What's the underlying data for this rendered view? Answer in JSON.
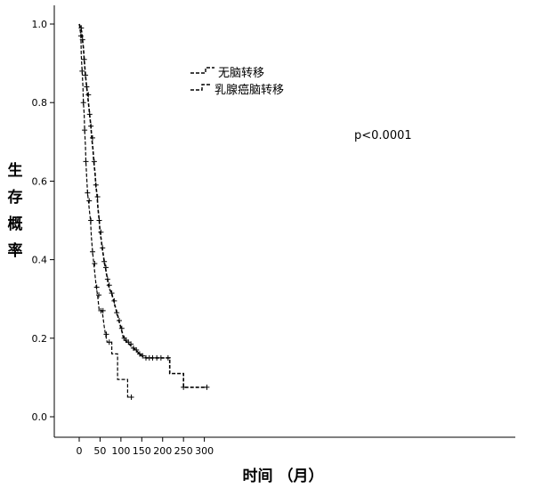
{
  "chart_data": {
    "type": "line",
    "subtype": "kaplan-meier survival curve",
    "xlabel": "时间 （月）",
    "ylabel": "生存概率",
    "xlim": [
      0,
      310
    ],
    "ylim": [
      0.0,
      1.0
    ],
    "x_ticks": [
      "0",
      "50",
      "100",
      "150",
      "200",
      "250",
      "300"
    ],
    "y_ticks": [
      "0.0",
      "0.2",
      "0.4",
      "0.6",
      "0.8",
      "1.0"
    ],
    "grid": false,
    "legend_position": "top-center",
    "annotation": "p<0.0001",
    "series": [
      {
        "name": "无脑转移",
        "line_style": "dashed",
        "censor_marker": "+",
        "points": [
          [
            0,
            1.0
          ],
          [
            2,
            0.995
          ],
          [
            4,
            0.99
          ],
          [
            6,
            0.98
          ],
          [
            8,
            0.96
          ],
          [
            10,
            0.94
          ],
          [
            12,
            0.91
          ],
          [
            15,
            0.87
          ],
          [
            18,
            0.84
          ],
          [
            20,
            0.82
          ],
          [
            23,
            0.79
          ],
          [
            25,
            0.77
          ],
          [
            28,
            0.74
          ],
          [
            30,
            0.71
          ],
          [
            33,
            0.68
          ],
          [
            35,
            0.65
          ],
          [
            38,
            0.62
          ],
          [
            40,
            0.59
          ],
          [
            43,
            0.56
          ],
          [
            45,
            0.53
          ],
          [
            48,
            0.5
          ],
          [
            50,
            0.47
          ],
          [
            53,
            0.45
          ],
          [
            55,
            0.43
          ],
          [
            58,
            0.41
          ],
          [
            60,
            0.395
          ],
          [
            63,
            0.38
          ],
          [
            65,
            0.365
          ],
          [
            68,
            0.35
          ],
          [
            70,
            0.335
          ],
          [
            73,
            0.325
          ],
          [
            75,
            0.32
          ],
          [
            78,
            0.315
          ],
          [
            80,
            0.305
          ],
          [
            83,
            0.295
          ],
          [
            85,
            0.285
          ],
          [
            88,
            0.275
          ],
          [
            90,
            0.265
          ],
          [
            93,
            0.255
          ],
          [
            95,
            0.245
          ],
          [
            98,
            0.235
          ],
          [
            100,
            0.225
          ],
          [
            103,
            0.215
          ],
          [
            105,
            0.205
          ],
          [
            108,
            0.2
          ],
          [
            110,
            0.195
          ],
          [
            115,
            0.19
          ],
          [
            120,
            0.185
          ],
          [
            125,
            0.18
          ],
          [
            130,
            0.175
          ],
          [
            135,
            0.17
          ],
          [
            140,
            0.165
          ],
          [
            145,
            0.16
          ],
          [
            150,
            0.155
          ],
          [
            160,
            0.15
          ],
          [
            170,
            0.15
          ],
          [
            180,
            0.15
          ],
          [
            190,
            0.15
          ],
          [
            200,
            0.15
          ],
          [
            217,
            0.15
          ],
          [
            217,
            0.11
          ],
          [
            250,
            0.11
          ],
          [
            250,
            0.075
          ],
          [
            306,
            0.075
          ]
        ],
        "censored_x": [
          5,
          8,
          12,
          15,
          18,
          22,
          25,
          28,
          32,
          36,
          40,
          44,
          48,
          52,
          56,
          60,
          64,
          68,
          72,
          78,
          84,
          90,
          96,
          102,
          108,
          112,
          118,
          124,
          130,
          137,
          145,
          152,
          160,
          168,
          176,
          186,
          196,
          213,
          250,
          306
        ]
      },
      {
        "name": "乳腺癌脑转移",
        "line_style": "dashed",
        "censor_marker": "+",
        "points": [
          [
            0,
            1.0
          ],
          [
            4,
            0.97
          ],
          [
            5,
            0.92
          ],
          [
            7,
            0.88
          ],
          [
            9,
            0.84
          ],
          [
            10,
            0.8
          ],
          [
            12,
            0.77
          ],
          [
            13,
            0.73
          ],
          [
            15,
            0.69
          ],
          [
            16,
            0.65
          ],
          [
            18,
            0.61
          ],
          [
            20,
            0.57
          ],
          [
            22,
            0.55
          ],
          [
            25,
            0.52
          ],
          [
            27,
            0.5
          ],
          [
            29,
            0.46
          ],
          [
            32,
            0.42
          ],
          [
            35,
            0.39
          ],
          [
            38,
            0.36
          ],
          [
            41,
            0.33
          ],
          [
            44,
            0.31
          ],
          [
            48,
            0.27
          ],
          [
            55,
            0.27
          ],
          [
            60,
            0.23
          ],
          [
            63,
            0.21
          ],
          [
            67,
            0.19
          ],
          [
            78,
            0.19
          ],
          [
            78,
            0.16
          ],
          [
            92,
            0.16
          ],
          [
            92,
            0.095
          ],
          [
            116,
            0.095
          ],
          [
            116,
            0.05
          ],
          [
            125,
            0.05
          ]
        ],
        "censored_x": [
          4,
          7,
          10,
          13,
          16,
          20,
          24,
          28,
          32,
          37,
          42,
          47,
          52,
          57,
          65,
          72,
          125
        ]
      }
    ]
  }
}
